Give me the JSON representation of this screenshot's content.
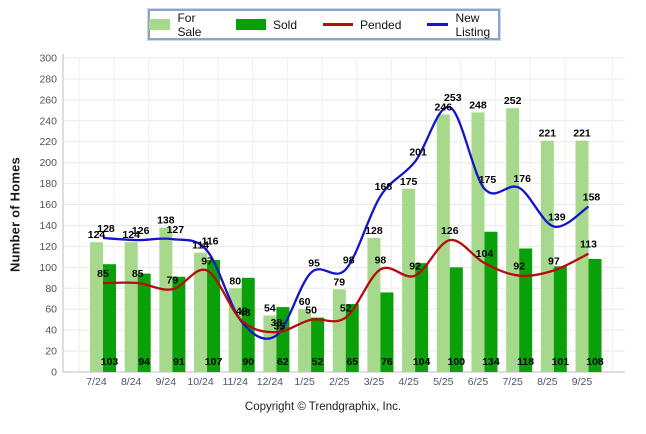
{
  "legend": {
    "items": [
      {
        "label": "For Sale",
        "swatch": "bar",
        "color": "#a6d98c"
      },
      {
        "label": "Sold",
        "swatch": "bar",
        "color": "#0aa00a"
      },
      {
        "label": "Pended",
        "swatch": "line",
        "color": "#b50d0d"
      },
      {
        "label": "New Listing",
        "swatch": "line",
        "color": "#1414cc"
      }
    ]
  },
  "y_axis": {
    "title": "Number of Homes",
    "min": 0,
    "max": 300,
    "step": 20
  },
  "footer": {
    "copyright": "Copyright © Trendgraphix, Inc."
  },
  "colors": {
    "for_sale": "#a6d98c",
    "sold": "#0aa00a",
    "pended": "#b50d0d",
    "new_listing": "#1414cc",
    "gridline": "#e9e9e9",
    "axis": "#bdbdbd",
    "tick_label": "#4a5568",
    "value_label": "#000000"
  },
  "chart_data": {
    "type": "bar",
    "subtype": "grouped-bars-with-lines",
    "title": "",
    "xlabel": "",
    "ylabel": "Number of Homes",
    "ylim": [
      0,
      300
    ],
    "ytick_step": 20,
    "grid": true,
    "legend_position": "top",
    "categories": [
      "7/24",
      "8/24",
      "9/24",
      "10/24",
      "11/24",
      "12/24",
      "1/25",
      "2/25",
      "3/25",
      "4/25",
      "5/25",
      "6/25",
      "7/25",
      "8/25",
      "9/25"
    ],
    "series": [
      {
        "name": "For Sale",
        "type": "bar",
        "color": "#a6d98c",
        "values": [
          124,
          124,
          138,
          114,
          80,
          54,
          60,
          79,
          128,
          175,
          246,
          248,
          252,
          221,
          221
        ]
      },
      {
        "name": "Sold",
        "type": "bar",
        "color": "#0aa00a",
        "values": [
          103,
          94,
          91,
          107,
          90,
          62,
          52,
          65,
          76,
          104,
          100,
          134,
          118,
          101,
          108
        ]
      },
      {
        "name": "Pended",
        "type": "line",
        "color": "#b50d0d",
        "values": [
          85,
          85,
          79,
          97,
          49,
          38,
          50,
          52,
          98,
          92,
          126,
          104,
          92,
          97,
          113
        ]
      },
      {
        "name": "New Listing",
        "type": "line",
        "color": "#1414cc",
        "values": [
          128,
          126,
          127,
          116,
          48,
          35,
          95,
          98,
          168,
          201,
          253,
          175,
          176,
          139,
          158
        ]
      }
    ]
  }
}
